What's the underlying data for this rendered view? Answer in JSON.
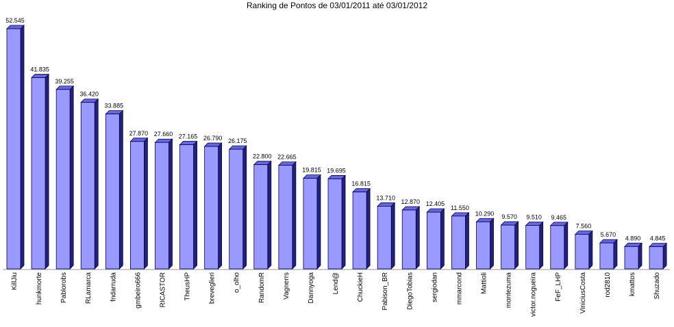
{
  "chart_data": {
    "type": "bar3d",
    "title": "Ranking de Pontos de 03/01/2011 até 03/01/2012",
    "categories": [
      "KillJiu",
      "hunkmorte",
      "Pablorobs",
      "RLamarca",
      "fndarruda",
      "gmbeiro666",
      "RICASTOR",
      "TheusHP",
      "breveglieri",
      "o_olho",
      "RandomR",
      "Vagnerrs",
      "Dannyoga",
      "Lend@",
      "ChuckieH",
      "Pabison_BR",
      "DiegoTobias",
      "sergiodan",
      "mmarcond",
      "Mattioli",
      "montezuma",
      "victor.nogueira",
      "FeF_LHP",
      "ViniciusCosta",
      "rod2810",
      "kmattos",
      "Shuzado"
    ],
    "values": [
      52545,
      41835,
      39255,
      36420,
      33885,
      27870,
      27660,
      27165,
      26790,
      26175,
      22800,
      22665,
      19815,
      19695,
      16815,
      13710,
      12870,
      12405,
      11550,
      10290,
      9570,
      9510,
      9465,
      7560,
      5670,
      4890,
      4845
    ],
    "value_labels": [
      "52.545",
      "41.835",
      "39.255",
      "36.420",
      "33.885",
      "27.870",
      "27.660",
      "27.165",
      "26.790",
      "26.175",
      "22.800",
      "22.665",
      "19.815",
      "19.695",
      "16.815",
      "13.710",
      "12.870",
      "12.405",
      "11.550",
      "10.290",
      "9.570",
      "9.510",
      "9.465",
      "7.560",
      "5.670",
      "4.890",
      "4.845"
    ],
    "color": "#9999ff"
  }
}
